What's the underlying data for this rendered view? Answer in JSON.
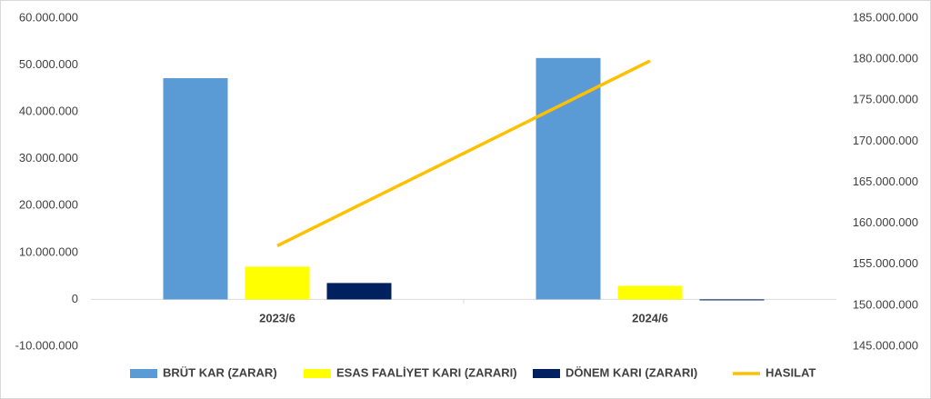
{
  "chart_data": {
    "type": "bar-line",
    "categories": [
      "2023/6",
      "2024/6"
    ],
    "series": [
      {
        "name": "BRÜT KAR (ZARAR)",
        "color": "#5b9bd5",
        "type": "bar",
        "values": [
          47200000,
          51500000
        ]
      },
      {
        "name": "ESAS FAALİYET KARI (ZARARI)",
        "color": "#ffff00",
        "type": "bar",
        "values": [
          7000000,
          2900000
        ]
      },
      {
        "name": "DÖNEM KARI (ZARARI)",
        "color": "#002060",
        "type": "bar",
        "values": [
          3500000,
          -200000
        ]
      },
      {
        "name": "HASILAT",
        "color": "#ffc000",
        "type": "line",
        "axis": "y2",
        "values": [
          157250000,
          179800000
        ]
      }
    ],
    "ylim": [
      -10000000,
      60000000
    ],
    "yticks": [
      {
        "value": -10000000,
        "label": "-10.000.000"
      },
      0,
      {
        "value": 10000000,
        "label": "10.000.000"
      },
      {
        "value": 20000000,
        "label": "20.000.000"
      },
      {
        "value": 30000000,
        "label": "30.000.000"
      },
      {
        "value": 40000000,
        "label": "40.000.000"
      },
      {
        "value": 50000000,
        "label": "50.000.000"
      },
      {
        "value": 60000000,
        "label": "60.000.000"
      }
    ],
    "y2lim": [
      145000000,
      185000000
    ],
    "y2ticks": [
      {
        "value": 145000000,
        "label": "145.000.000"
      },
      {
        "value": 150000000,
        "label": "150.000.000"
      },
      {
        "value": 155000000,
        "label": "155.000.000"
      },
      {
        "value": 160000000,
        "label": "160.000.000"
      },
      {
        "value": 165000000,
        "label": "165.000.000"
      },
      {
        "value": 170000000,
        "label": "170.000.000"
      },
      {
        "value": 175000000,
        "label": "175.000.000"
      },
      {
        "value": 180000000,
        "label": "180.000.000"
      },
      {
        "value": 185000000,
        "label": "185.000.000"
      }
    ],
    "legend": "bottom"
  }
}
